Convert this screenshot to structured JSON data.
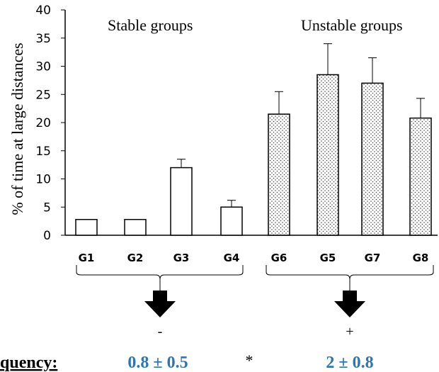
{
  "chart_data": {
    "type": "bar",
    "categories": [
      "G1",
      "G2",
      "G3",
      "G4",
      "G6",
      "G5",
      "G7",
      "G8"
    ],
    "values": [
      2.8,
      2.8,
      12,
      5,
      21.5,
      28.5,
      27,
      20.8
    ],
    "errors": [
      0,
      0,
      1.5,
      1.2,
      4,
      5.5,
      4.5,
      3.5
    ],
    "bar_fill": [
      "open",
      "open",
      "open",
      "open",
      "dotted",
      "dotted",
      "dotted",
      "dotted"
    ],
    "ylabel": "% of time at large distances",
    "yticks": [
      0,
      5,
      10,
      15,
      20,
      25,
      30,
      35,
      40
    ],
    "ytick_labels": [
      "0",
      "5",
      "10",
      "15",
      "20",
      "25",
      "30",
      "35",
      "40"
    ],
    "ylim": [
      0,
      40
    ],
    "group_titles": [
      "Stable groups",
      "Unstable groups"
    ],
    "group_signs": [
      "-",
      "+"
    ],
    "bottom": {
      "label": "quency:",
      "left_value": "0.8 ± 0.5",
      "separator": "*",
      "right_value": "2 ± 0.8"
    },
    "colors": {
      "value_text": "#2e75b6",
      "axis": "#000000",
      "dots": "#444444"
    }
  }
}
